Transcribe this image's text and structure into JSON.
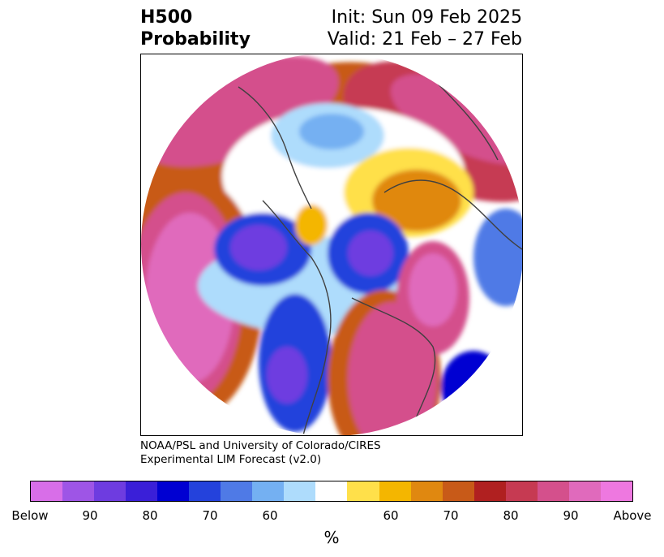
{
  "header": {
    "title_line1": "H500",
    "title_line2": "Probability",
    "init": "Init: Sun 09 Feb 2025",
    "valid": "Valid: 21 Feb – 27 Feb"
  },
  "credit": {
    "line1": "NOAA/PSL and University of Colorado/CIRES",
    "line2": "Experimental LIM Forecast (v2.0)"
  },
  "colorbar": {
    "colors": [
      "#d86ee8",
      "#9e55e6",
      "#6e3ce0",
      "#3a1fd8",
      "#0000d2",
      "#2442dc",
      "#4f7ae6",
      "#74b0f2",
      "#aedcfc",
      "#ffffff",
      "#ffe04a",
      "#f4b600",
      "#e08810",
      "#c85a18",
      "#b02020",
      "#c63a52",
      "#d4508c",
      "#e06abc",
      "#ee78e0"
    ],
    "ticks": [
      "Below",
      "90",
      "80",
      "70",
      "60",
      "60",
      "70",
      "80",
      "90",
      "Above"
    ],
    "unit": "%"
  }
}
